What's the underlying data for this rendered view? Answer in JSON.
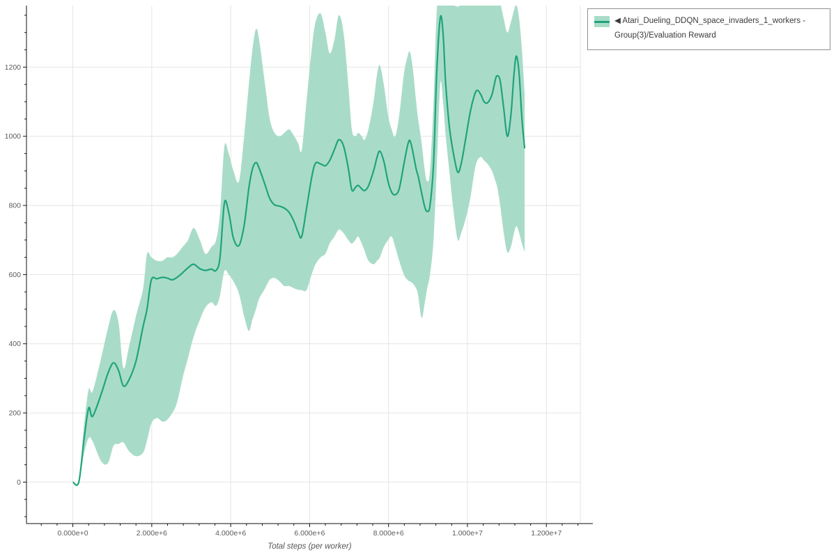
{
  "page": {
    "background": "#ffffff"
  },
  "colors": {
    "grid": "#e4e4e4",
    "axis": "#111111",
    "tick_label": "#5a5a5a",
    "axis_title": "#555555",
    "legend_border": "#8f8f8f",
    "legend_text": "#3a3a3a",
    "line": "#1fa37c",
    "band": "#a9dcc8"
  },
  "chart_data": {
    "type": "line",
    "title": "",
    "xlabel": "Total steps (per worker)",
    "ylabel": "",
    "grid": true,
    "legend_position": "top-right",
    "xlim_millions": [
      -1.175,
      12.86
    ],
    "ylim": [
      -120,
      1378
    ],
    "x_ticks": {
      "values_millions": [
        0,
        2,
        4,
        6,
        8,
        10,
        12
      ],
      "labels": [
        "0.000e+0",
        "2.000e+6",
        "4.000e+6",
        "6.000e+6",
        "8.000e+6",
        "1.000e+7",
        "1.200e+7"
      ],
      "minor_step_millions": 0.4
    },
    "y_ticks": {
      "values": [
        0,
        200,
        400,
        600,
        800,
        1000,
        1200
      ],
      "labels": [
        "0",
        "200",
        "400",
        "600",
        "800",
        "1000",
        "1200"
      ],
      "minor_step": 50
    },
    "series": [
      {
        "name": "◀ Atari_Dueling_DDQN_space_invaders_1_workers - Group(3)/Evaluation Reward",
        "line_color": "#1fa37c",
        "band_color": "#a9dcc8",
        "x_steps_millions": [
          0.0,
          0.15,
          0.28,
          0.4,
          0.5,
          0.72,
          0.89,
          1.03,
          1.16,
          1.28,
          1.42,
          1.6,
          1.78,
          1.88,
          1.99,
          2.13,
          2.27,
          2.39,
          2.52,
          2.64,
          2.78,
          2.92,
          3.06,
          3.22,
          3.36,
          3.51,
          3.63,
          3.73,
          3.84,
          3.95,
          4.07,
          4.21,
          4.34,
          4.46,
          4.55,
          4.64,
          4.72,
          4.87,
          4.99,
          5.11,
          5.24,
          5.36,
          5.48,
          5.61,
          5.71,
          5.8,
          5.92,
          6.05,
          6.15,
          6.28,
          6.4,
          6.51,
          6.63,
          6.74,
          6.86,
          6.98,
          7.07,
          7.16,
          7.23,
          7.32,
          7.39,
          7.49,
          7.62,
          7.71,
          7.78,
          7.88,
          7.99,
          8.08,
          8.17,
          8.27,
          8.39,
          8.48,
          8.54,
          8.61,
          8.7,
          8.75,
          8.84,
          8.92,
          8.98,
          9.05,
          9.14,
          9.22,
          9.31,
          9.38,
          9.45,
          9.54,
          9.63,
          9.75,
          9.84,
          9.95,
          10.07,
          10.18,
          10.25,
          10.34,
          10.42,
          10.51,
          10.62,
          10.71,
          10.76,
          10.83,
          10.92,
          11.01,
          11.1,
          11.18,
          11.24,
          11.31,
          11.38,
          11.45
        ],
        "mean": [
          0,
          0,
          120,
          214,
          190,
          255,
          315,
          345,
          322,
          278,
          295,
          350,
          450,
          500,
          585,
          588,
          592,
          590,
          585,
          592,
          605,
          620,
          630,
          617,
          612,
          616,
          612,
          650,
          807,
          780,
          705,
          684,
          742,
          850,
          905,
          924,
          908,
          860,
          820,
          802,
          798,
          792,
          780,
          752,
          722,
          710,
          790,
          880,
          922,
          920,
          915,
          930,
          962,
          990,
          972,
          908,
          845,
          852,
          858,
          848,
          843,
          856,
          900,
          940,
          957,
          928,
          868,
          838,
          831,
          848,
          920,
          972,
          988,
          958,
          905,
          885,
          835,
          795,
          783,
          800,
          920,
          1180,
          1342,
          1300,
          1150,
          1030,
          960,
          897,
          920,
          990,
          1070,
          1120,
          1133,
          1120,
          1100,
          1097,
          1120,
          1165,
          1175,
          1160,
          1080,
          1000,
          1060,
          1180,
          1232,
          1180,
          1050,
          965
        ],
        "band_lower": [
          0,
          0,
          80,
          127,
          118,
          60,
          55,
          105,
          110,
          115,
          90,
          75,
          85,
          120,
          170,
          185,
          175,
          180,
          200,
          230,
          300,
          360,
          420,
          470,
          505,
          520,
          510,
          540,
          610,
          600,
          580,
          545,
          480,
          437,
          470,
          500,
          530,
          560,
          585,
          590,
          580,
          567,
          567,
          560,
          556,
          555,
          555,
          600,
          630,
          650,
          660,
          690,
          710,
          730,
          720,
          700,
          690,
          700,
          710,
          690,
          670,
          640,
          630,
          640,
          650,
          680,
          700,
          710,
          680,
          640,
          600,
          585,
          580,
          575,
          560,
          540,
          475,
          520,
          560,
          600,
          700,
          900,
          1150,
          1100,
          1000,
          900,
          800,
          702,
          720,
          760,
          820,
          900,
          930,
          940,
          930,
          920,
          900,
          870,
          850,
          800,
          720,
          665,
          680,
          720,
          740,
          720,
          690,
          665
        ],
        "band_upper": [
          0,
          0,
          160,
          267,
          262,
          360,
          445,
          497,
          460,
          330,
          390,
          480,
          560,
          660,
          650,
          640,
          640,
          650,
          650,
          660,
          680,
          700,
          735,
          700,
          660,
          680,
          700,
          780,
          970,
          950,
          900,
          870,
          1000,
          1150,
          1250,
          1310,
          1280,
          1150,
          1050,
          1010,
          1000,
          1010,
          1020,
          1000,
          980,
          960,
          1100,
          1250,
          1330,
          1355,
          1300,
          1240,
          1280,
          1350,
          1300,
          1150,
          1020,
          1000,
          1010,
          1000,
          990,
          1020,
          1100,
          1180,
          1205,
          1150,
          1060,
          1020,
          1000,
          1060,
          1180,
          1230,
          1245,
          1200,
          1100,
          1050,
          980,
          900,
          870,
          900,
          1100,
          1360,
          1420,
          1400,
          1390,
          1385,
          1380,
          1375,
          1380,
          1385,
          1390,
          1395,
          1395,
          1392,
          1390,
          1390,
          1392,
          1393,
          1392,
          1385,
          1340,
          1300,
          1330,
          1365,
          1380,
          1340,
          1250,
          1120
        ]
      }
    ]
  }
}
